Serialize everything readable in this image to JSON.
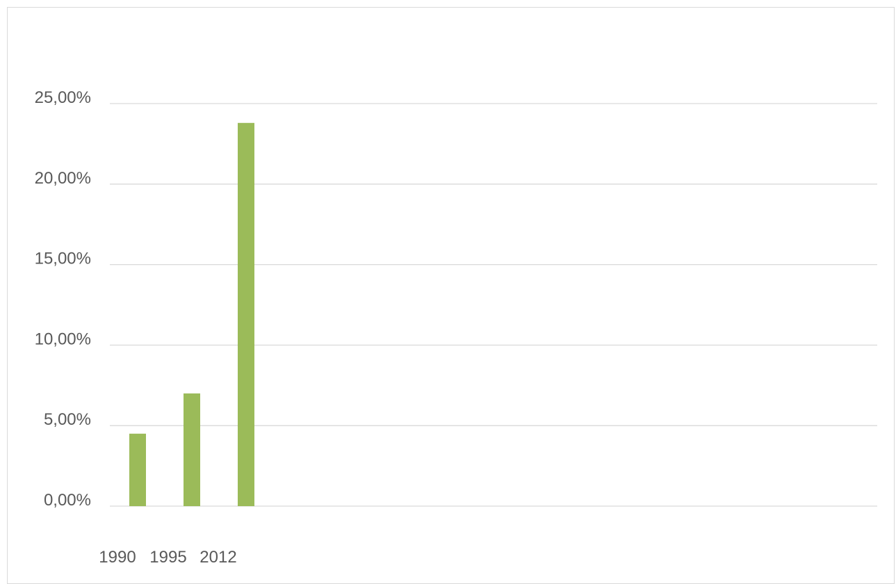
{
  "chart_data": {
    "type": "bar",
    "categories": [
      "1990",
      "1995",
      "2012"
    ],
    "values": [
      4.5,
      7.0,
      23.8
    ],
    "series": [
      {
        "values": [
          4.5,
          7.0,
          23.8
        ],
        "color": "#9bbb59"
      }
    ],
    "title": "",
    "xlabel": "",
    "ylabel": "",
    "ylim": [
      0,
      25
    ],
    "y_ticks": [
      0,
      5,
      10,
      15,
      20,
      25
    ],
    "y_tick_labels": [
      "0,00%",
      "5,00%",
      "10,00%",
      "15,00%",
      "20,00%",
      "25,00%"
    ],
    "grid": true,
    "legend": "none",
    "colors": {
      "bar": "#9bbb59",
      "grid": "#d9d9d9",
      "text": "#595959",
      "border": "#d9d9d9"
    }
  }
}
